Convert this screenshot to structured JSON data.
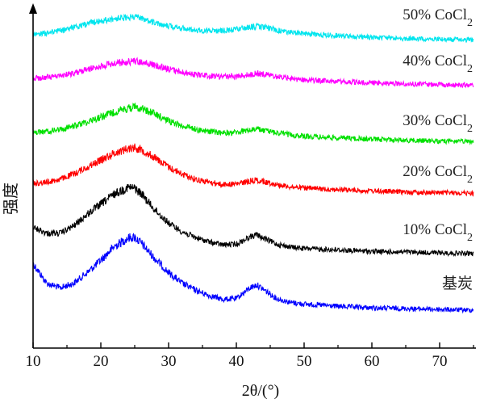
{
  "chart_data": {
    "type": "line",
    "title": "",
    "xlabel": "2θ/(°)",
    "ylabel": "强度",
    "xlim": [
      10,
      75
    ],
    "x_ticks": [
      10,
      20,
      30,
      40,
      50,
      60,
      70
    ],
    "y_ticks_shown": false,
    "grid": false,
    "legend": "inline labels at right end of each curve",
    "x": [
      10,
      12,
      14,
      16,
      18,
      20,
      22,
      24,
      25,
      26,
      28,
      30,
      32,
      34,
      36,
      38,
      40,
      42,
      43,
      44,
      46,
      48,
      50,
      55,
      60,
      65,
      70,
      75
    ],
    "series": [
      {
        "name": "基炭",
        "color": "#0000ff",
        "values": [
          0.62,
          0.36,
          0.3,
          0.36,
          0.5,
          0.66,
          0.84,
          0.95,
          0.96,
          0.88,
          0.68,
          0.5,
          0.36,
          0.27,
          0.2,
          0.15,
          0.16,
          0.3,
          0.34,
          0.28,
          0.16,
          0.11,
          0.09,
          0.06,
          0.04,
          0.03,
          0.02,
          0.01
        ]
      },
      {
        "name": "10% CoCl2",
        "color": "#000000",
        "values": [
          0.36,
          0.28,
          0.28,
          0.38,
          0.54,
          0.68,
          0.82,
          0.91,
          0.9,
          0.82,
          0.6,
          0.42,
          0.3,
          0.22,
          0.16,
          0.12,
          0.13,
          0.23,
          0.26,
          0.21,
          0.13,
          0.09,
          0.07,
          0.05,
          0.03,
          0.02,
          0.01,
          0.0
        ]
      },
      {
        "name": "20% CoCl2",
        "color": "#ff0000",
        "values": [
          0.18,
          0.2,
          0.25,
          0.34,
          0.46,
          0.58,
          0.7,
          0.78,
          0.8,
          0.76,
          0.62,
          0.46,
          0.34,
          0.25,
          0.2,
          0.16,
          0.17,
          0.22,
          0.24,
          0.21,
          0.16,
          0.12,
          0.1,
          0.07,
          0.05,
          0.03,
          0.02,
          0.01
        ]
      },
      {
        "name": "30% CoCl2",
        "color": "#00e000",
        "values": [
          0.2,
          0.22,
          0.26,
          0.33,
          0.42,
          0.52,
          0.62,
          0.7,
          0.72,
          0.7,
          0.58,
          0.44,
          0.34,
          0.27,
          0.22,
          0.19,
          0.2,
          0.25,
          0.27,
          0.24,
          0.19,
          0.15,
          0.12,
          0.09,
          0.06,
          0.04,
          0.02,
          0.01
        ]
      },
      {
        "name": "40% CoCl2",
        "color": "#ff00ff",
        "values": [
          0.16,
          0.18,
          0.22,
          0.28,
          0.36,
          0.44,
          0.5,
          0.54,
          0.55,
          0.53,
          0.45,
          0.37,
          0.3,
          0.25,
          0.22,
          0.2,
          0.21,
          0.25,
          0.27,
          0.26,
          0.2,
          0.16,
          0.13,
          0.09,
          0.06,
          0.04,
          0.02,
          0.01
        ]
      },
      {
        "name": "50% CoCl2",
        "color": "#00e5ee",
        "values": [
          0.1,
          0.12,
          0.16,
          0.21,
          0.27,
          0.32,
          0.36,
          0.38,
          0.38,
          0.36,
          0.3,
          0.24,
          0.2,
          0.17,
          0.16,
          0.16,
          0.18,
          0.22,
          0.23,
          0.22,
          0.17,
          0.13,
          0.11,
          0.08,
          0.05,
          0.03,
          0.02,
          0.01
        ]
      }
    ]
  }
}
